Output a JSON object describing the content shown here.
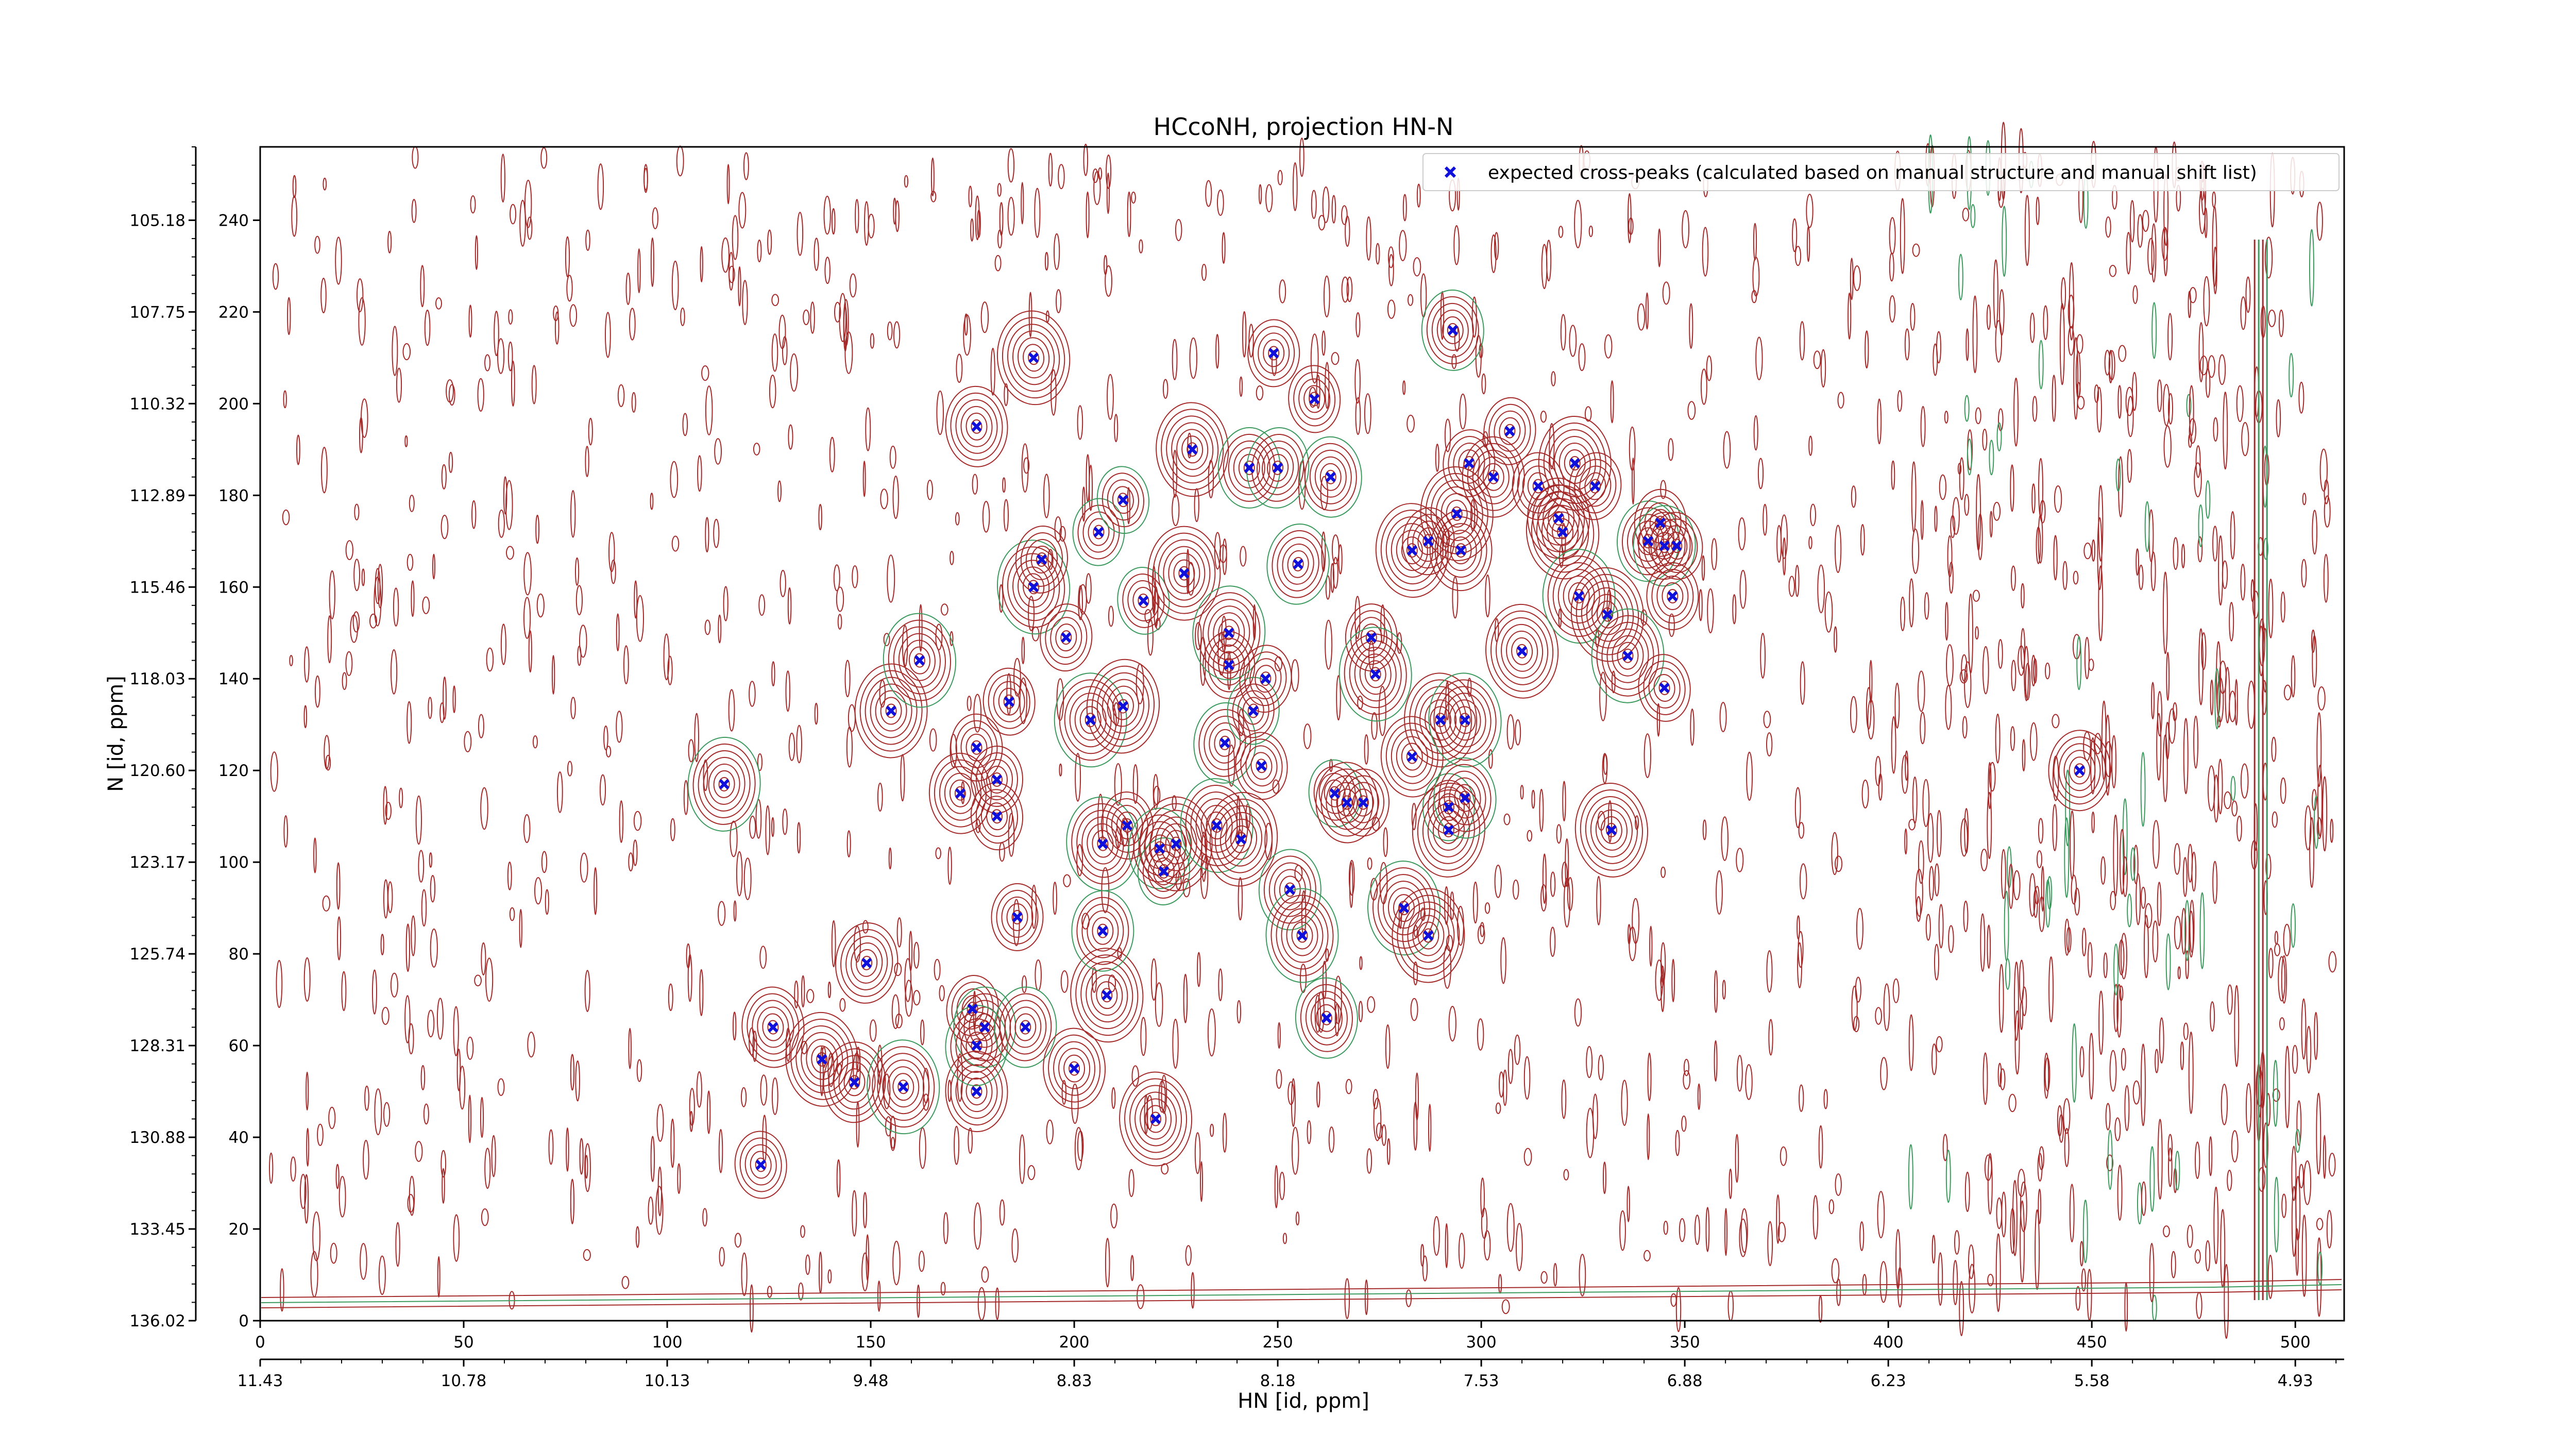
{
  "chart_data": {
    "type": "scatter",
    "title": "HCcoNH, projection HN-N",
    "xlabel": "HN [id, ppm]",
    "ylabel": "N [id, ppm]",
    "xlim": [
      0,
      512
    ],
    "ylim": [
      0,
      256
    ],
    "x_ticks_index": [
      "0",
      "50",
      "100",
      "150",
      "200",
      "250",
      "300",
      "350",
      "400",
      "450",
      "500"
    ],
    "x_ticks_ppm": [
      "11.43",
      "10.78",
      "10.13",
      "9.48",
      "8.83",
      "8.18",
      "7.53",
      "6.88",
      "6.23",
      "5.58",
      "4.93"
    ],
    "y_ticks_index": [
      "0",
      "20",
      "40",
      "60",
      "80",
      "100",
      "120",
      "140",
      "160",
      "180",
      "200",
      "220",
      "240"
    ],
    "y_ticks_ppm": [
      "136.02",
      "133.45",
      "130.88",
      "128.31",
      "125.74",
      "123.17",
      "120.60",
      "118.03",
      "115.46",
      "112.89",
      "110.32",
      "107.75",
      "105.18"
    ],
    "grid": false,
    "legend_position": "top-right",
    "colors": {
      "marker": "#1010dd",
      "contour_positive": "#a52a2a",
      "contour_negative": "#3c9a5e"
    },
    "series": [
      {
        "name": "expected cross-peaks (calculated based on manual structure and manual shift list)",
        "marker": "x",
        "points": [
          [
            114,
            117
          ],
          [
            126,
            64
          ],
          [
            123,
            34
          ],
          [
            138,
            57
          ],
          [
            146,
            52
          ],
          [
            158,
            51
          ],
          [
            149,
            78
          ],
          [
            155,
            133
          ],
          [
            162,
            144
          ],
          [
            172,
            115
          ],
          [
            176,
            50
          ],
          [
            175,
            68
          ],
          [
            178,
            64
          ],
          [
            176,
            60
          ],
          [
            176,
            125
          ],
          [
            181,
            118
          ],
          [
            181,
            110
          ],
          [
            184,
            135
          ],
          [
            188,
            64
          ],
          [
            186,
            88
          ],
          [
            190,
            210
          ],
          [
            176,
            195
          ],
          [
            190,
            160
          ],
          [
            192,
            166
          ],
          [
            198,
            149
          ],
          [
            200,
            55
          ],
          [
            204,
            131
          ],
          [
            207,
            104
          ],
          [
            208,
            71
          ],
          [
            207,
            85
          ],
          [
            206,
            172
          ],
          [
            212,
            179
          ],
          [
            213,
            108
          ],
          [
            212,
            134
          ],
          [
            217,
            157
          ],
          [
            220,
            44
          ],
          [
            221,
            103
          ],
          [
            222,
            98
          ],
          [
            225,
            104
          ],
          [
            227,
            163
          ],
          [
            229,
            190
          ],
          [
            235,
            108
          ],
          [
            237,
            126
          ],
          [
            241,
            105
          ],
          [
            238,
            143
          ],
          [
            238,
            150
          ],
          [
            243,
            186
          ],
          [
            244,
            133
          ],
          [
            246,
            121
          ],
          [
            247,
            140
          ],
          [
            249,
            211
          ],
          [
            250,
            186
          ],
          [
            253,
            94
          ],
          [
            255,
            165
          ],
          [
            256,
            84
          ],
          [
            259,
            201
          ],
          [
            262,
            66
          ],
          [
            263,
            184
          ],
          [
            264,
            115
          ],
          [
            267,
            113
          ],
          [
            271,
            113
          ],
          [
            273,
            149
          ],
          [
            274,
            141
          ],
          [
            281,
            90
          ],
          [
            283,
            123
          ],
          [
            283,
            168
          ],
          [
            287,
            170
          ],
          [
            287,
            84
          ],
          [
            290,
            131
          ],
          [
            292,
            112
          ],
          [
            292,
            107
          ],
          [
            293,
            216
          ],
          [
            294,
            176
          ],
          [
            295,
            168
          ],
          [
            296,
            131
          ],
          [
            296,
            114
          ],
          [
            297,
            187
          ],
          [
            303,
            184
          ],
          [
            307,
            194
          ],
          [
            310,
            146
          ],
          [
            314,
            182
          ],
          [
            319,
            175
          ],
          [
            320,
            172
          ],
          [
            323,
            187
          ],
          [
            324,
            158
          ],
          [
            328,
            182
          ],
          [
            331,
            154
          ],
          [
            332,
            107
          ],
          [
            336,
            145
          ],
          [
            341,
            170
          ],
          [
            344,
            174
          ],
          [
            345,
            138
          ],
          [
            345,
            169
          ],
          [
            347,
            158
          ],
          [
            348,
            169
          ],
          [
            447,
            120
          ]
        ]
      }
    ]
  }
}
